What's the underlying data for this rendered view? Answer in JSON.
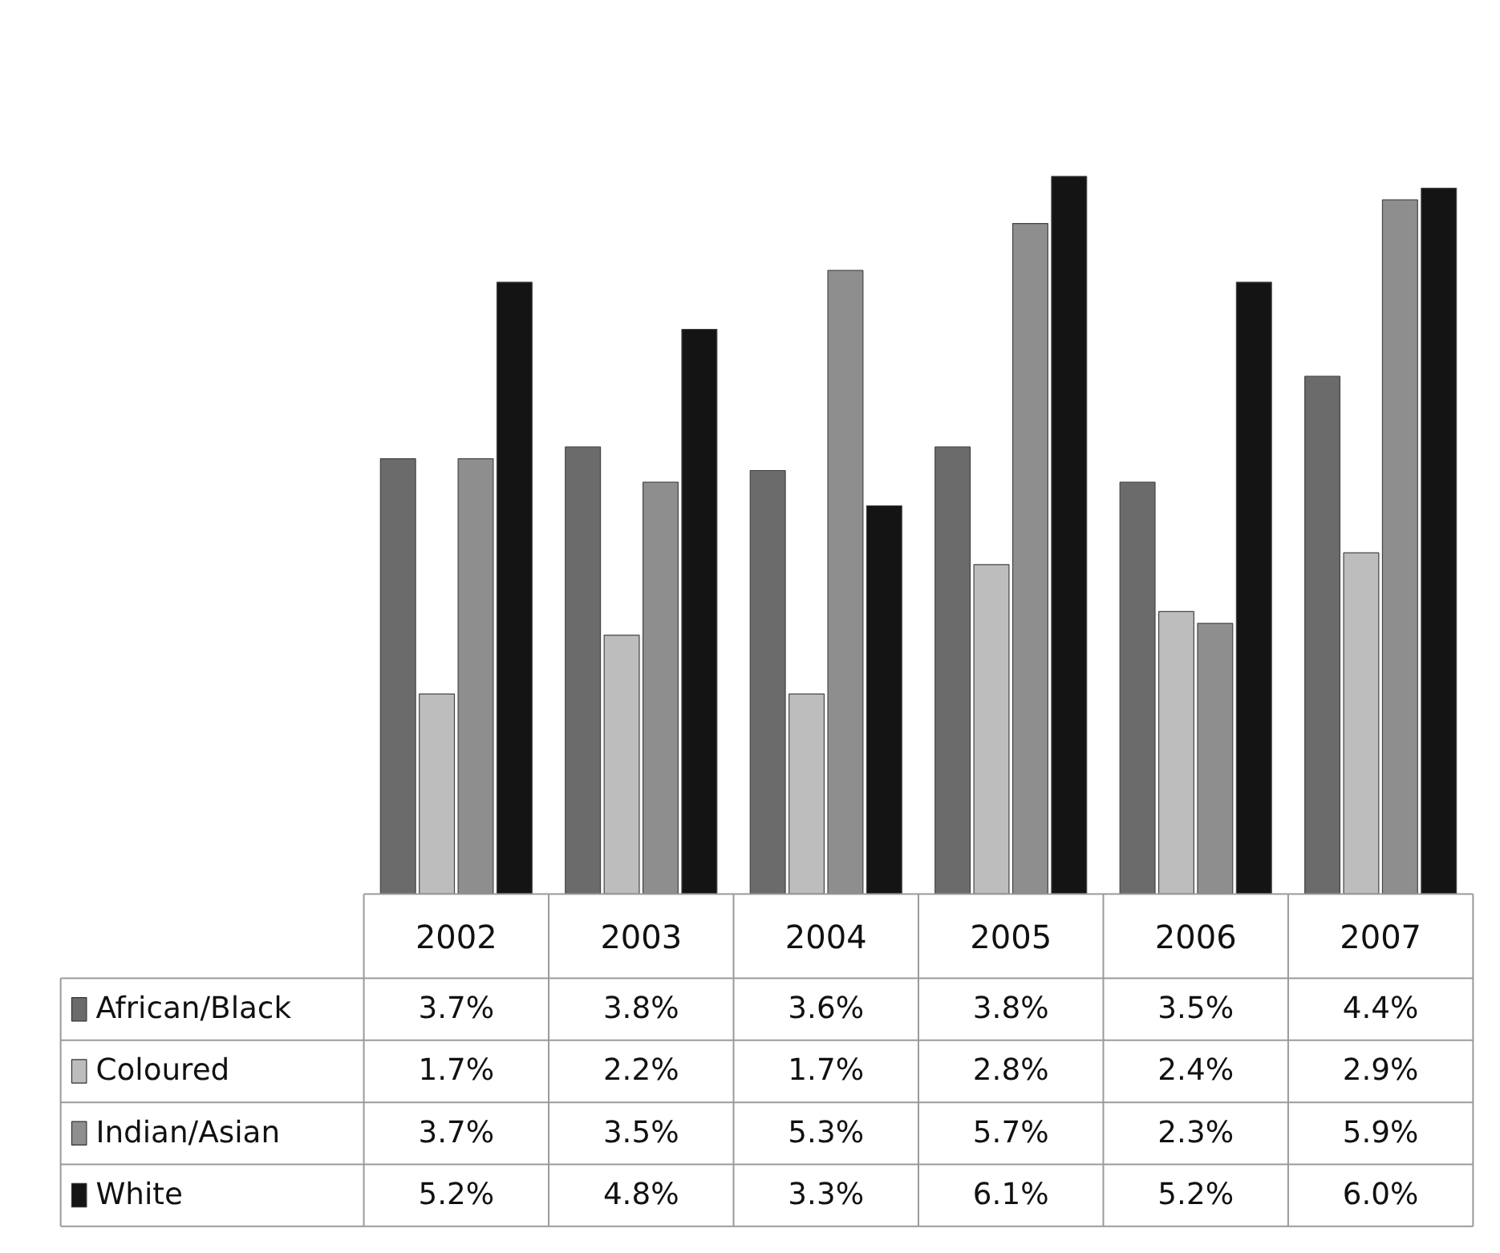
{
  "chart_data": {
    "type": "bar",
    "categories": [
      "2002",
      "2003",
      "2004",
      "2005",
      "2006",
      "2007"
    ],
    "series": [
      {
        "name": "African/Black",
        "color": "#6b6b6b",
        "values": [
          3.7,
          3.8,
          3.6,
          3.8,
          3.5,
          4.4
        ],
        "value_labels": [
          "3.7%",
          "3.8%",
          "3.6%",
          "3.8%",
          "3.5%",
          "4.4%"
        ]
      },
      {
        "name": "Coloured",
        "color": "#bdbdbd",
        "values": [
          1.7,
          2.2,
          1.7,
          2.8,
          2.4,
          2.9
        ],
        "value_labels": [
          "1.7%",
          "2.2%",
          "1.7%",
          "2.8%",
          "2.4%",
          "2.9%"
        ]
      },
      {
        "name": "Indian/Asian",
        "color": "#8e8e8e",
        "values": [
          3.7,
          3.5,
          5.3,
          5.7,
          2.3,
          5.9
        ],
        "value_labels": [
          "3.7%",
          "3.5%",
          "5.3%",
          "5.7%",
          "2.3%",
          "5.9%"
        ]
      },
      {
        "name": "White",
        "color": "#141414",
        "values": [
          5.2,
          4.8,
          3.3,
          6.1,
          5.2,
          6.0
        ],
        "value_labels": [
          "5.2%",
          "4.8%",
          "3.3%",
          "6.1%",
          "5.2%",
          "6.0%"
        ]
      }
    ],
    "legend": "bottom left",
    "relative": false
  }
}
